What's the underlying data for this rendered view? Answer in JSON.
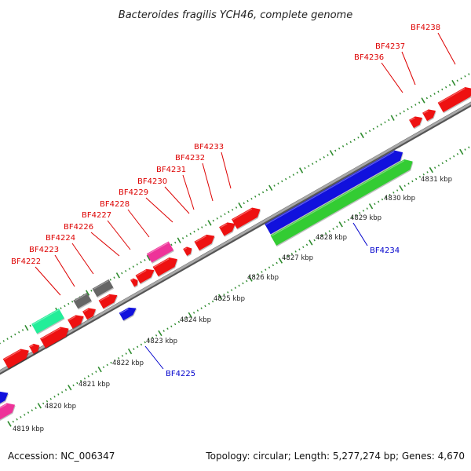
{
  "title": "Bacteroides fragilis YCH46, complete genome",
  "footer": {
    "accession": "Accession: NC_006347",
    "summary": "Topology: circular; Length: 5,277,274 bp; Genes: 4,670"
  },
  "colors": {
    "forward_label": "#dd0000",
    "reverse_label": "#0000cc",
    "backbone": "#8c8c8c",
    "ticks": "#2e8b2e",
    "gene_types": {
      "red": "#ee1111",
      "blue": "#1111dd",
      "green": "#33cc33",
      "gray": "#666666",
      "magenta": "#ee3399",
      "teal": "#22ee99"
    }
  },
  "scale": {
    "unit": "kbp",
    "labels": [
      "4819 kbp",
      "4820 kbp",
      "4821 kbp",
      "4822 kbp",
      "4823 kbp",
      "4824 kbp",
      "4825 kbp",
      "4826 kbp",
      "4827 kbp",
      "4828 kbp",
      "4829 kbp",
      "4830 kbp",
      "4831 kbp"
    ]
  },
  "gene_labels": [
    {
      "id": "BF4222",
      "strand": "forward"
    },
    {
      "id": "BF4223",
      "strand": "forward"
    },
    {
      "id": "BF4224",
      "strand": "forward"
    },
    {
      "id": "BF4226",
      "strand": "forward"
    },
    {
      "id": "BF4227",
      "strand": "forward"
    },
    {
      "id": "BF4228",
      "strand": "forward"
    },
    {
      "id": "BF4229",
      "strand": "forward"
    },
    {
      "id": "BF4230",
      "strand": "forward"
    },
    {
      "id": "BF4231",
      "strand": "forward"
    },
    {
      "id": "BF4232",
      "strand": "forward"
    },
    {
      "id": "BF4233",
      "strand": "forward"
    },
    {
      "id": "BF4236",
      "strand": "forward"
    },
    {
      "id": "BF4237",
      "strand": "forward"
    },
    {
      "id": "BF4238",
      "strand": "forward"
    },
    {
      "id": "BF4225",
      "strand": "reverse"
    },
    {
      "id": "BF4234",
      "strand": "reverse"
    }
  ]
}
